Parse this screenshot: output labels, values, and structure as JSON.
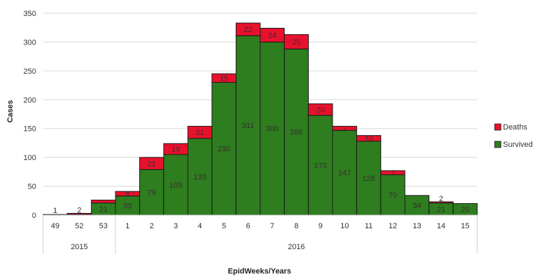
{
  "chart_data": {
    "type": "bar",
    "stacked": true,
    "x": [
      "49",
      "52",
      "53",
      "1",
      "2",
      "3",
      "4",
      "5",
      "6",
      "7",
      "8",
      "9",
      "10",
      "11",
      "12",
      "13",
      "14",
      "15"
    ],
    "year_groups": [
      {
        "label": "2015",
        "start": 0,
        "end": 2
      },
      {
        "label": "2016",
        "start": 3,
        "end": 17
      }
    ],
    "series": [
      {
        "name": "Survived",
        "color": "#2e7d1f",
        "values": [
          1,
          1,
          21,
          33,
          79,
          105,
          133,
          230,
          311,
          300,
          288,
          173,
          147,
          128,
          70,
          34,
          21,
          20
        ],
        "labels": [
          "1",
          "",
          "21",
          "33",
          "79",
          "105",
          "133",
          "230",
          "311",
          "300",
          "288",
          "173",
          "147",
          "128",
          "70",
          "34",
          "21",
          "20"
        ]
      },
      {
        "name": "Deaths",
        "color": "#e8112d",
        "values": [
          0,
          2,
          5,
          8,
          21,
          19,
          21,
          15,
          22,
          24,
          25,
          20,
          7,
          10,
          7,
          0,
          2,
          0
        ],
        "labels": [
          "",
          "2",
          "",
          "8",
          "21",
          "19",
          "21",
          "15",
          "22",
          "24",
          "25",
          "20",
          "7",
          "10",
          "7",
          "",
          "2",
          ""
        ]
      }
    ],
    "xlabel": "EpidWeeks/Years",
    "ylabel": "Cases",
    "ylim": [
      0,
      350
    ],
    "yticks": [
      0,
      50,
      100,
      150,
      200,
      250,
      300,
      350
    ],
    "grid": true,
    "legend": "right"
  }
}
